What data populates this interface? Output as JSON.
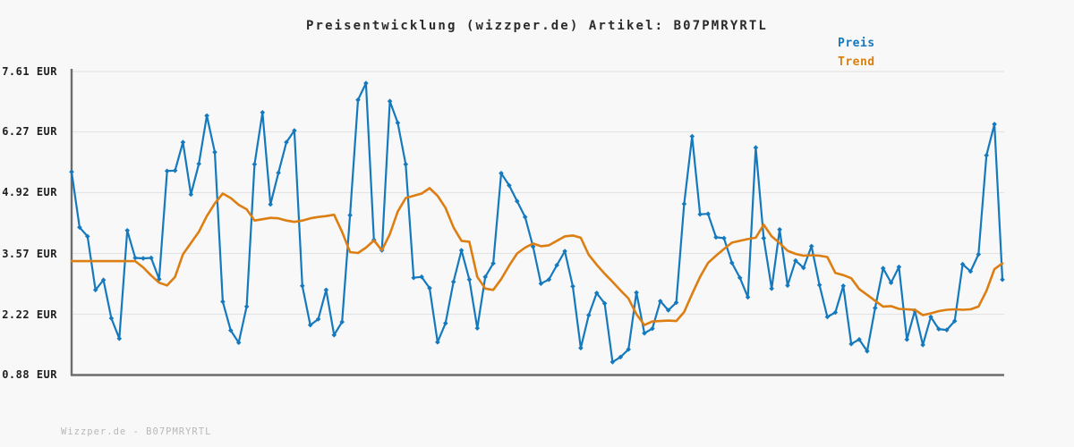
{
  "page": {
    "background": "#f8f8f8",
    "watermark": "Wizzper.de - B07PMRYRTL"
  },
  "legend": {
    "items": [
      {
        "label": "Preis",
        "color": "#1579be"
      },
      {
        "label": "Trend",
        "color": "#d9800f"
      }
    ]
  },
  "colors": {
    "grid": "#e4e4e4",
    "axis": "#6d6d6d",
    "title_text": "#2b2b2b",
    "tick_text": "#1f1f1f",
    "watermark_text": "#b8b8b8"
  },
  "chart_data": {
    "type": "line",
    "title": "Preisentwicklung (wizzper.de) Artikel: B07PMRYRTL",
    "xlabel": "",
    "ylabel": "",
    "x_axis_labels_visible": false,
    "grid": true,
    "legend_position": "top-right",
    "ylim": [
      0.88,
      7.61
    ],
    "yticks": [
      "0.88 EUR",
      "2.22 EUR",
      "3.57 EUR",
      "4.92 EUR",
      "6.27 EUR",
      "7.61 EUR"
    ],
    "ytick_values": [
      0.88,
      2.22,
      3.57,
      4.92,
      6.27,
      7.61
    ],
    "unit": "EUR",
    "n_points": 118,
    "series": [
      {
        "name": "Preis",
        "color": "#1579be",
        "marker": "diamond",
        "line_width": 2.2,
        "values": [
          5.38,
          4.15,
          3.95,
          2.76,
          2.98,
          2.13,
          1.68,
          4.08,
          3.47,
          3.46,
          3.47,
          3.0,
          5.4,
          5.41,
          6.04,
          4.88,
          5.56,
          6.63,
          5.82,
          2.5,
          1.86,
          1.59,
          2.39,
          5.55,
          6.7,
          4.66,
          5.36,
          6.04,
          6.3,
          2.85,
          1.98,
          2.11,
          2.76,
          1.76,
          2.05,
          4.42,
          6.98,
          7.35,
          3.87,
          3.64,
          6.95,
          6.47,
          5.55,
          3.03,
          3.05,
          2.8,
          1.6,
          2.02,
          2.94,
          3.64,
          2.99,
          1.91,
          3.05,
          3.35,
          5.35,
          5.08,
          4.73,
          4.38,
          3.72,
          2.9,
          2.99,
          3.31,
          3.62,
          2.84,
          1.47,
          2.2,
          2.69,
          2.46,
          1.16,
          1.27,
          1.44,
          2.7,
          1.8,
          1.9,
          2.51,
          2.31,
          2.48,
          4.67,
          6.17,
          4.44,
          4.45,
          3.93,
          3.91,
          3.36,
          3.03,
          2.6,
          5.92,
          3.91,
          2.79,
          4.1,
          2.86,
          3.41,
          3.25,
          3.73,
          2.87,
          2.16,
          2.26,
          2.85,
          1.56,
          1.66,
          1.4,
          2.36,
          3.24,
          2.92,
          3.27,
          1.66,
          2.3,
          1.54,
          2.16,
          1.89,
          1.87,
          2.07,
          3.33,
          3.17,
          3.55,
          5.75,
          6.44,
          2.99
        ]
      },
      {
        "name": "Trend",
        "color": "#dd7e12",
        "marker": "none",
        "line_width": 2.6,
        "values": [
          3.4,
          3.4,
          3.4,
          3.4,
          3.4,
          3.4,
          3.4,
          3.4,
          3.4,
          3.26,
          3.08,
          2.92,
          2.86,
          3.05,
          3.55,
          3.8,
          4.05,
          4.4,
          4.68,
          4.9,
          4.8,
          4.65,
          4.55,
          4.3,
          4.33,
          4.36,
          4.35,
          4.3,
          4.27,
          4.3,
          4.35,
          4.38,
          4.4,
          4.43,
          4.05,
          3.6,
          3.58,
          3.7,
          3.86,
          3.64,
          4.0,
          4.5,
          4.8,
          4.85,
          4.9,
          5.02,
          4.85,
          4.58,
          4.15,
          3.85,
          3.83,
          3.05,
          2.79,
          2.76,
          3.0,
          3.3,
          3.57,
          3.7,
          3.79,
          3.73,
          3.75,
          3.85,
          3.95,
          3.97,
          3.92,
          3.54,
          3.32,
          3.12,
          2.94,
          2.75,
          2.57,
          2.22,
          1.98,
          2.06,
          2.07,
          2.08,
          2.07,
          2.27,
          2.67,
          3.05,
          3.36,
          3.52,
          3.67,
          3.81,
          3.85,
          3.89,
          3.92,
          4.21,
          3.95,
          3.8,
          3.63,
          3.56,
          3.52,
          3.53,
          3.52,
          3.49,
          3.14,
          3.09,
          3.02,
          2.78,
          2.65,
          2.52,
          2.39,
          2.4,
          2.34,
          2.33,
          2.32,
          2.2,
          2.24,
          2.29,
          2.32,
          2.33,
          2.32,
          2.33,
          2.39,
          2.74,
          3.22,
          3.35
        ]
      }
    ]
  }
}
